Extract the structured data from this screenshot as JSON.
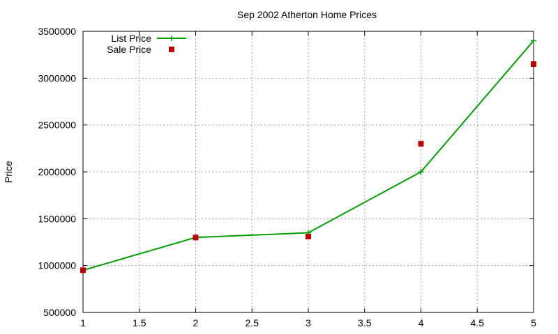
{
  "chart_data": {
    "type": "line",
    "title": "Sep 2002 Atherton Home Prices",
    "xlabel": "",
    "ylabel": "Price",
    "xlim": [
      1,
      5
    ],
    "ylim": [
      500000,
      3500000
    ],
    "xticks": [
      "1",
      "1.5",
      "2",
      "2.5",
      "3",
      "3.5",
      "4",
      "4.5",
      "5"
    ],
    "yticks": [
      "500000",
      "1000000",
      "1500000",
      "2000000",
      "2500000",
      "3000000",
      "3500000"
    ],
    "grid": true,
    "legend_position": "top-left",
    "series": [
      {
        "name": "List Price",
        "style": "line+cross",
        "color": "#00a000",
        "points": [
          {
            "x": 1,
            "y": 950000
          },
          {
            "x": 2,
            "y": 1300000
          },
          {
            "x": 3,
            "y": 1350000
          },
          {
            "x": 4,
            "y": 2000000
          },
          {
            "x": 5,
            "y": 3400000
          }
        ]
      },
      {
        "name": "Sale Price",
        "style": "square",
        "color": "#c00000",
        "points": [
          {
            "x": 1,
            "y": 950000
          },
          {
            "x": 2,
            "y": 1300000
          },
          {
            "x": 3,
            "y": 1310000
          },
          {
            "x": 4,
            "y": 2300000
          },
          {
            "x": 5,
            "y": 3150000
          }
        ]
      }
    ]
  }
}
